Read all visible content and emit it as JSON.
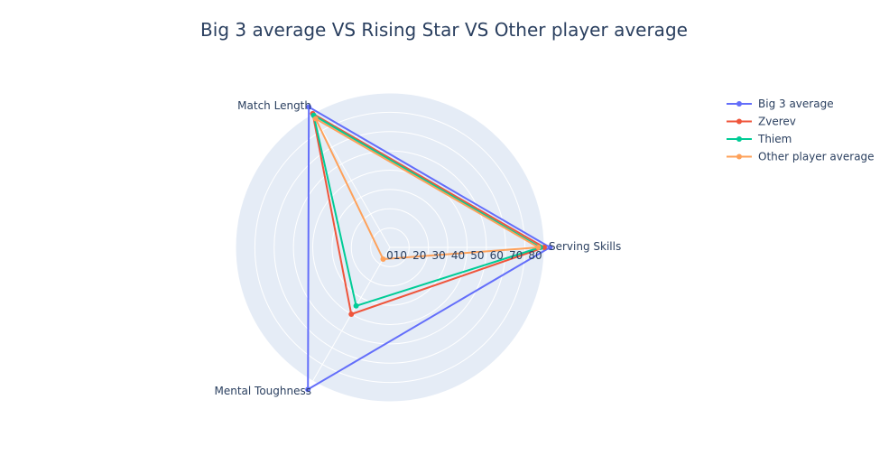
{
  "chart_data": {
    "type": "radar",
    "title": "Big 3 average VS Rising Star VS Other player average",
    "axes": [
      "Serving Skills",
      "Match Length",
      "Mental Toughness"
    ],
    "radial_range": [
      0,
      80
    ],
    "radial_ticks": [
      "0",
      "10",
      "20",
      "30",
      "40",
      "50",
      "60",
      "70",
      "80"
    ],
    "grid": true,
    "legend_position": "top-right",
    "series": [
      {
        "name": "Big 3 average",
        "color": "#636efa",
        "values": [
          83,
          84,
          85
        ]
      },
      {
        "name": "Zverev",
        "color": "#ef553b",
        "values": [
          80,
          80,
          40
        ]
      },
      {
        "name": "Thiem",
        "color": "#00cc96",
        "values": [
          78,
          79,
          35
        ]
      },
      {
        "name": "Other player average",
        "color": "#fea15a",
        "values": [
          77,
          77,
          7
        ]
      }
    ]
  }
}
